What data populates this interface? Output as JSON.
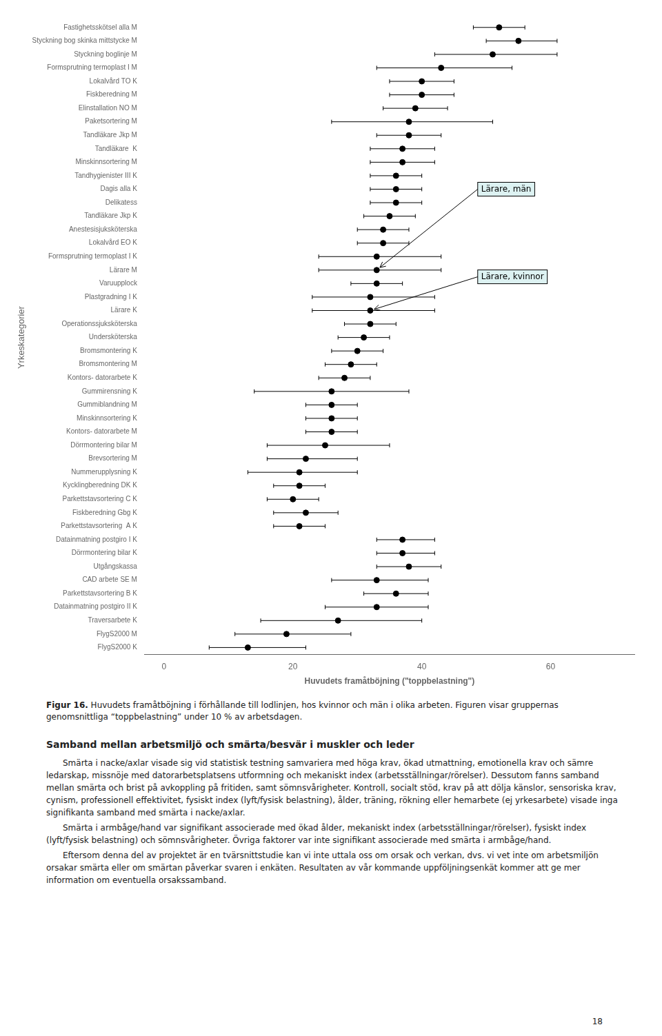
{
  "chart_data": {
    "type": "scatter",
    "orientation": "horizontal",
    "categories": [
      "Fastighetsskötsel alla M",
      "Styckning bog skinka mittstycke M",
      "Styckning boglinje M",
      "Formsprutning termoplast I M",
      "Lokalvård TO K",
      "Fiskberedning M",
      "Elinstallation NO M",
      "Paketsortering M",
      "Tandläkare Jkp M",
      "Tandläkare  K",
      "Minskinnsortering M",
      "Tandhygienister III K",
      "Dagis alla K",
      "Delikatess",
      "Tandläkare Jkp K",
      "Anestesisjuksköterska",
      "Lokalvård EO K",
      "Formsprutning termoplast I K",
      "Lärare M",
      "Varuupplock",
      "Plastgradning I K",
      "Lärare K",
      "Operationssjuksköterska",
      "Undersköterska",
      "Bromsmontering K",
      "Bromsmontering M",
      "Kontors- datorarbete K",
      "Gummirensning K",
      "Gummiblandning M",
      "Minskinnsortering K",
      "Kontors- datorarbete M",
      "Dörrmontering bilar M",
      "Brevsortering M",
      "Nummerupplysning K",
      "Kycklingberedning DK K",
      "Parkettstavsortering C K",
      "Fiskberedning Gbg K",
      "Parkettstavsortering  A K",
      "Datainmatning postgiro I K",
      "Dörrmontering bilar K",
      "Utgångskassa",
      "CAD arbete SE M",
      "Parkettstavsortering B K",
      "Datainmatning postgiro II K",
      "Traversarbete K",
      "FlygS2000 M",
      "FlygS2000 K"
    ],
    "values": [
      52,
      55,
      51,
      43,
      40,
      40,
      39,
      38,
      38,
      37,
      37,
      36,
      36,
      36,
      35,
      34,
      34,
      33,
      33,
      33,
      32,
      32,
      32,
      31,
      30,
      29,
      28,
      26,
      26,
      26,
      26,
      25,
      22,
      21,
      21,
      20,
      22,
      21,
      37,
      37,
      38,
      33,
      36,
      33,
      27,
      19,
      13
    ],
    "errors_low": [
      4,
      5,
      9,
      10,
      5,
      5,
      5,
      12,
      5,
      5,
      5,
      4,
      4,
      4,
      4,
      4,
      4,
      9,
      9,
      4,
      9,
      9,
      4,
      4,
      4,
      4,
      4,
      12,
      4,
      4,
      4,
      9,
      6,
      8,
      4,
      4,
      5,
      4,
      4,
      4,
      5,
      7,
      5,
      8,
      12,
      8,
      6
    ],
    "errors_high": [
      4,
      6,
      10,
      11,
      5,
      5,
      5,
      13,
      5,
      5,
      5,
      4,
      4,
      4,
      4,
      4,
      4,
      10,
      10,
      4,
      10,
      10,
      4,
      4,
      4,
      4,
      4,
      12,
      4,
      4,
      4,
      10,
      8,
      9,
      4,
      4,
      5,
      4,
      5,
      5,
      5,
      8,
      5,
      8,
      13,
      10,
      9
    ],
    "xlabel": "Huvudets framåtböjning (\"toppbelastning\")",
    "ylabel": "Yrkeskategorier",
    "xlim": [
      -3,
      73
    ],
    "xticks": [
      0,
      20,
      40,
      60
    ],
    "grid": false,
    "color": "#000000",
    "marker": "circle",
    "annotations": [
      {
        "text": "Lärare, män",
        "category": "Lärare M"
      },
      {
        "text": "Lärare, kvinnor",
        "category": "Lärare K"
      }
    ]
  },
  "caption_label": "Figur 16.",
  "caption": "Huvudets framåtböjning i förhållande till lodlinjen, hos kvinnor och män i olika arbeten. Figuren visar gruppernas genomsnittliga “toppbelastning” under 10 % av arbetsdagen.",
  "section_title": "Samband mellan arbetsmiljö och smärta/besvär i muskler och leder",
  "paragraphs": [
    "Smärta i nacke/axlar visade sig vid statistisk testning samvariera med höga krav, ökad utmattning, emotionella krav och sämre ledarskap, missnöje med datorarbetsplatsens utformning och mekaniskt index (arbetsställningar/rörelser). Dessutom fanns samband mellan smärta och brist på avkoppling på fritiden, samt sömnsvårigheter. Kontroll, socialt stöd, krav på att dölja känslor, sensoriska krav, cynism, professionell effektivitet, fysiskt index (lyft/fysisk belastning), ålder, träning, rökning eller hemarbete (ej yrkesarbete) visade inga signifikanta samband med smärta i nacke/axlar.",
    "Smärta i armbåge/hand var signifikant associerade med ökad ålder, mekaniskt index (arbetsställningar/rörelser), fysiskt index (lyft/fysisk belastning) och sömnsvårigheter. Övriga faktorer var inte signifikant associerade med smärta i armbåge/hand.",
    "Eftersom denna del av projektet är en tvärsnittstudie kan vi inte uttala oss om orsak och verkan, dvs. vi vet inte om arbetsmiljön orsakar smärta eller om smärtan påverkar svaren i enkäten. Resultaten av vår kommande uppföljningsenkät kommer att ge mer information om eventuella orsakssamband."
  ],
  "page_number": "18"
}
